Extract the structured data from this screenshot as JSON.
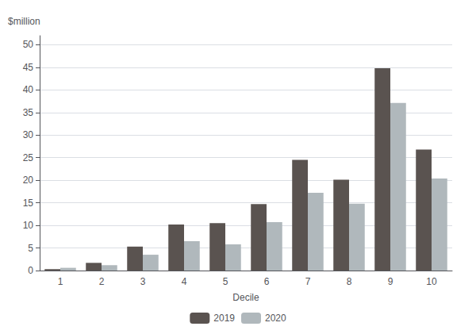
{
  "chart_data": {
    "type": "bar",
    "categories": [
      1,
      2,
      3,
      4,
      5,
      6,
      7,
      8,
      9,
      10
    ],
    "series": [
      {
        "name": "2019",
        "color": "#5a5350",
        "values": [
          0.3,
          1.7,
          5.3,
          10.2,
          10.5,
          14.7,
          24.5,
          20.1,
          44.8,
          26.8
        ]
      },
      {
        "name": "2020",
        "color": "#b0b8bc",
        "values": [
          0.6,
          1.2,
          3.5,
          6.5,
          5.8,
          10.7,
          17.2,
          14.8,
          37.1,
          20.4
        ]
      }
    ],
    "xlabel": "Decile",
    "ylabel": "$million",
    "ylim": [
      0,
      52
    ],
    "yticks": [
      0,
      5,
      10,
      15,
      20,
      25,
      30,
      35,
      40,
      45,
      50
    ],
    "grid": true,
    "legend": "bottom"
  }
}
